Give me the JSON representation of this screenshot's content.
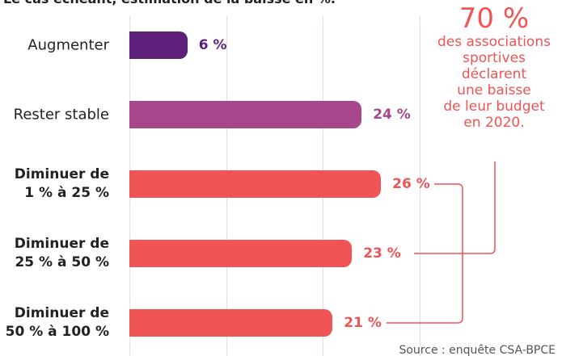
{
  "chart_data": {
    "type": "bar",
    "orientation": "horizontal",
    "title": "Le cas échéant, estimation de la baisse en %.",
    "categories": [
      "Augmenter",
      "Rester stable",
      "Diminuer de\n1 % à 25 %",
      "Diminuer de\n25 % à 50 %",
      "Diminuer de\n50 % à 100 %"
    ],
    "values": [
      6,
      24,
      26,
      23,
      21
    ],
    "value_labels": [
      "6 %",
      "24 %",
      "26 %",
      "23 %",
      "21 %"
    ],
    "colors": [
      "#5c1f7a",
      "#a8468c",
      "#f05454",
      "#f05454",
      "#f05454"
    ],
    "label_bold": [
      false,
      false,
      true,
      true,
      true
    ],
    "xlim": [
      0,
      30
    ],
    "xticks": [
      0,
      10,
      20,
      30
    ],
    "grid": true,
    "annotation_figure": "70 %",
    "annotation_text": "des associations\nsportives\ndéclarent\nune baisse\nde leur budget\nen 2020.",
    "source": "Source : enquête CSA-BPCE"
  }
}
